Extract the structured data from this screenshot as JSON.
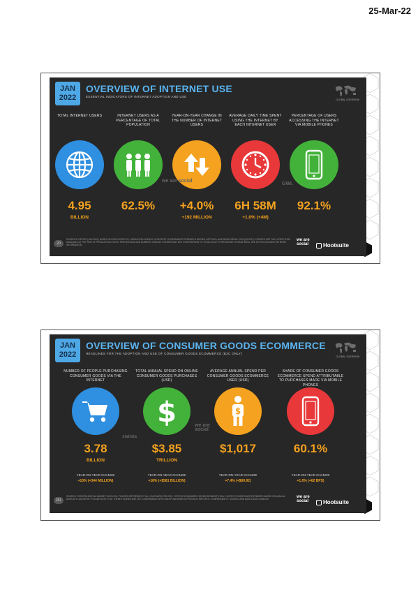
{
  "header": {
    "date": "25-Mar-22"
  },
  "slide1": {
    "badge": {
      "month": "JAN",
      "year": "2022"
    },
    "title": "OVERVIEW OF INTERNET USE",
    "subtitle": "ESSENTIAL INDICATORS OF INTERNET ADOPTION AND USE",
    "map_label": "GLOBAL OVERVIEW",
    "columns": [
      {
        "label": "TOTAL INTERNET USERS",
        "icon": "globe-icon",
        "color": "#2f8fe0",
        "value": "4.95",
        "sub": "BILLION"
      },
      {
        "label": "INTERNET USERS AS A PERCENTAGE OF TOTAL POPULATION",
        "icon": "people-icon",
        "color": "#43b23a",
        "value": "62.5%",
        "sub": ""
      },
      {
        "label": "YEAR-ON-YEAR CHANGE IN THE NUMBER OF INTERNET USERS",
        "icon": "arrows-icon",
        "color": "#f4a21f",
        "value": "+4.0%",
        "sub": "+192 MILLION"
      },
      {
        "label": "AVERAGE DAILY TIME SPENT USING THE INTERNET BY EACH INTERNET USER",
        "icon": "clock-icon",
        "color": "#e8383a",
        "value": "6H 58M",
        "sub": "+1.0% (+4M)"
      },
      {
        "label": "PERCENTAGE OF USERS ACCESSING THE INTERNET VIA MOBILE PHONES",
        "icon": "phone-icon",
        "color": "#43b23a",
        "value": "92.1%",
        "sub": ""
      }
    ],
    "footnote": "SOURCES: KEPIOS (JAN 2022), BASED ON DATA FROM ITU, GSMA INTELLIGENCE, EUROSTAT, GOVERNMENT RESEARCH BODIES, APP DATA, AND NEWS MEDIA. GWI (Q3 2021). FIGURES USE THE LATEST DATA AVAILABLE AT THE TIME OF PRODUCTION. NOTE: PERCENTAGE AND NUMERIC CHANGE FIGURES MAY NOT CORRESPOND TO TOTALS DUE TO REVISIONS TO BASE DATA. SEE NOTES ON DATA FOR MORE INFORMATION.",
    "page_number": "20",
    "brand_wearesocial": "we are social",
    "brand_hootsuite": "Hootsuite",
    "watermarks": [
      "we are social",
      "GWI."
    ]
  },
  "slide2": {
    "badge": {
      "month": "JAN",
      "year": "2022"
    },
    "title": "OVERVIEW OF CONSUMER GOODS ECOMMERCE",
    "subtitle": "HEADLINES FOR THE ADOPTION AND USE OF CONSUMER GOODS ECOMMERCE (B2C ONLY)",
    "map_label": "GLOBAL OVERVIEW",
    "columns": [
      {
        "label": "NUMBER OF PEOPLE PURCHASING CONSUMER GOODS VIA THE INTERNET",
        "icon": "cart-icon",
        "color": "#2f8fe0",
        "value": "3.78",
        "sub": "BILLION",
        "yoy_label": "YEAR-ON-YEAR CHANGE",
        "yoy": "+10% (+344 MILLION)"
      },
      {
        "label": "TOTAL ANNUAL SPEND ON ONLINE CONSUMER GOODS PURCHASES (USD)",
        "icon": "dollar-icon",
        "color": "#43b23a",
        "value": "$3.85",
        "sub": "TRILLION",
        "yoy_label": "YEAR-ON-YEAR CHANGE",
        "yoy": "+18% (+$581 BILLION)"
      },
      {
        "label": "AVERAGE ANNUAL SPEND PER CONSUMER GOODS ECOMMERCE USER (USD)",
        "icon": "person-dollar-icon",
        "color": "#f4a21f",
        "value": "$1,017",
        "sub": "",
        "yoy_label": "YEAR-ON-YEAR CHANGE",
        "yoy": "+7.4% (+$69.92)"
      },
      {
        "label": "SHARE OF CONSUMER GOODS ECOMMERCE SPEND ATTRIBUTABLE TO PURCHASES MADE VIA MOBILE PHONES",
        "icon": "phone-icon",
        "color": "#e8383a",
        "value": "60.1%",
        "sub": "",
        "yoy_label": "YEAR-ON-YEAR CHANGE",
        "yoy": "+1.0% (+62 BPS)"
      }
    ],
    "footnote": "SOURCE: STATISTA DIGITAL MARKET OUTLOOK, FIGURES REPRESENT FULL-YEAR DATA FOR 2021, FOR THE CONSUMER GOODS SEGMENTS ONLY. NOTES: FIGURES ARE ESTIMATES BASED ON ANNUAL AMOUNTS. ADVISORY: PLEASE NOTE THAT THESE FIGURES ARE NOT COMPARABLE WITH DATA PUBLISHED IN PREVIOUS REPORTS. COMPARABILITY: SOURCE AND BASE DATA CHANGES.",
    "page_number": "261",
    "brand_wearesocial": "we are social",
    "brand_hootsuite": "Hootsuite",
    "watermarks": [
      "statista",
      "we are social"
    ]
  }
}
